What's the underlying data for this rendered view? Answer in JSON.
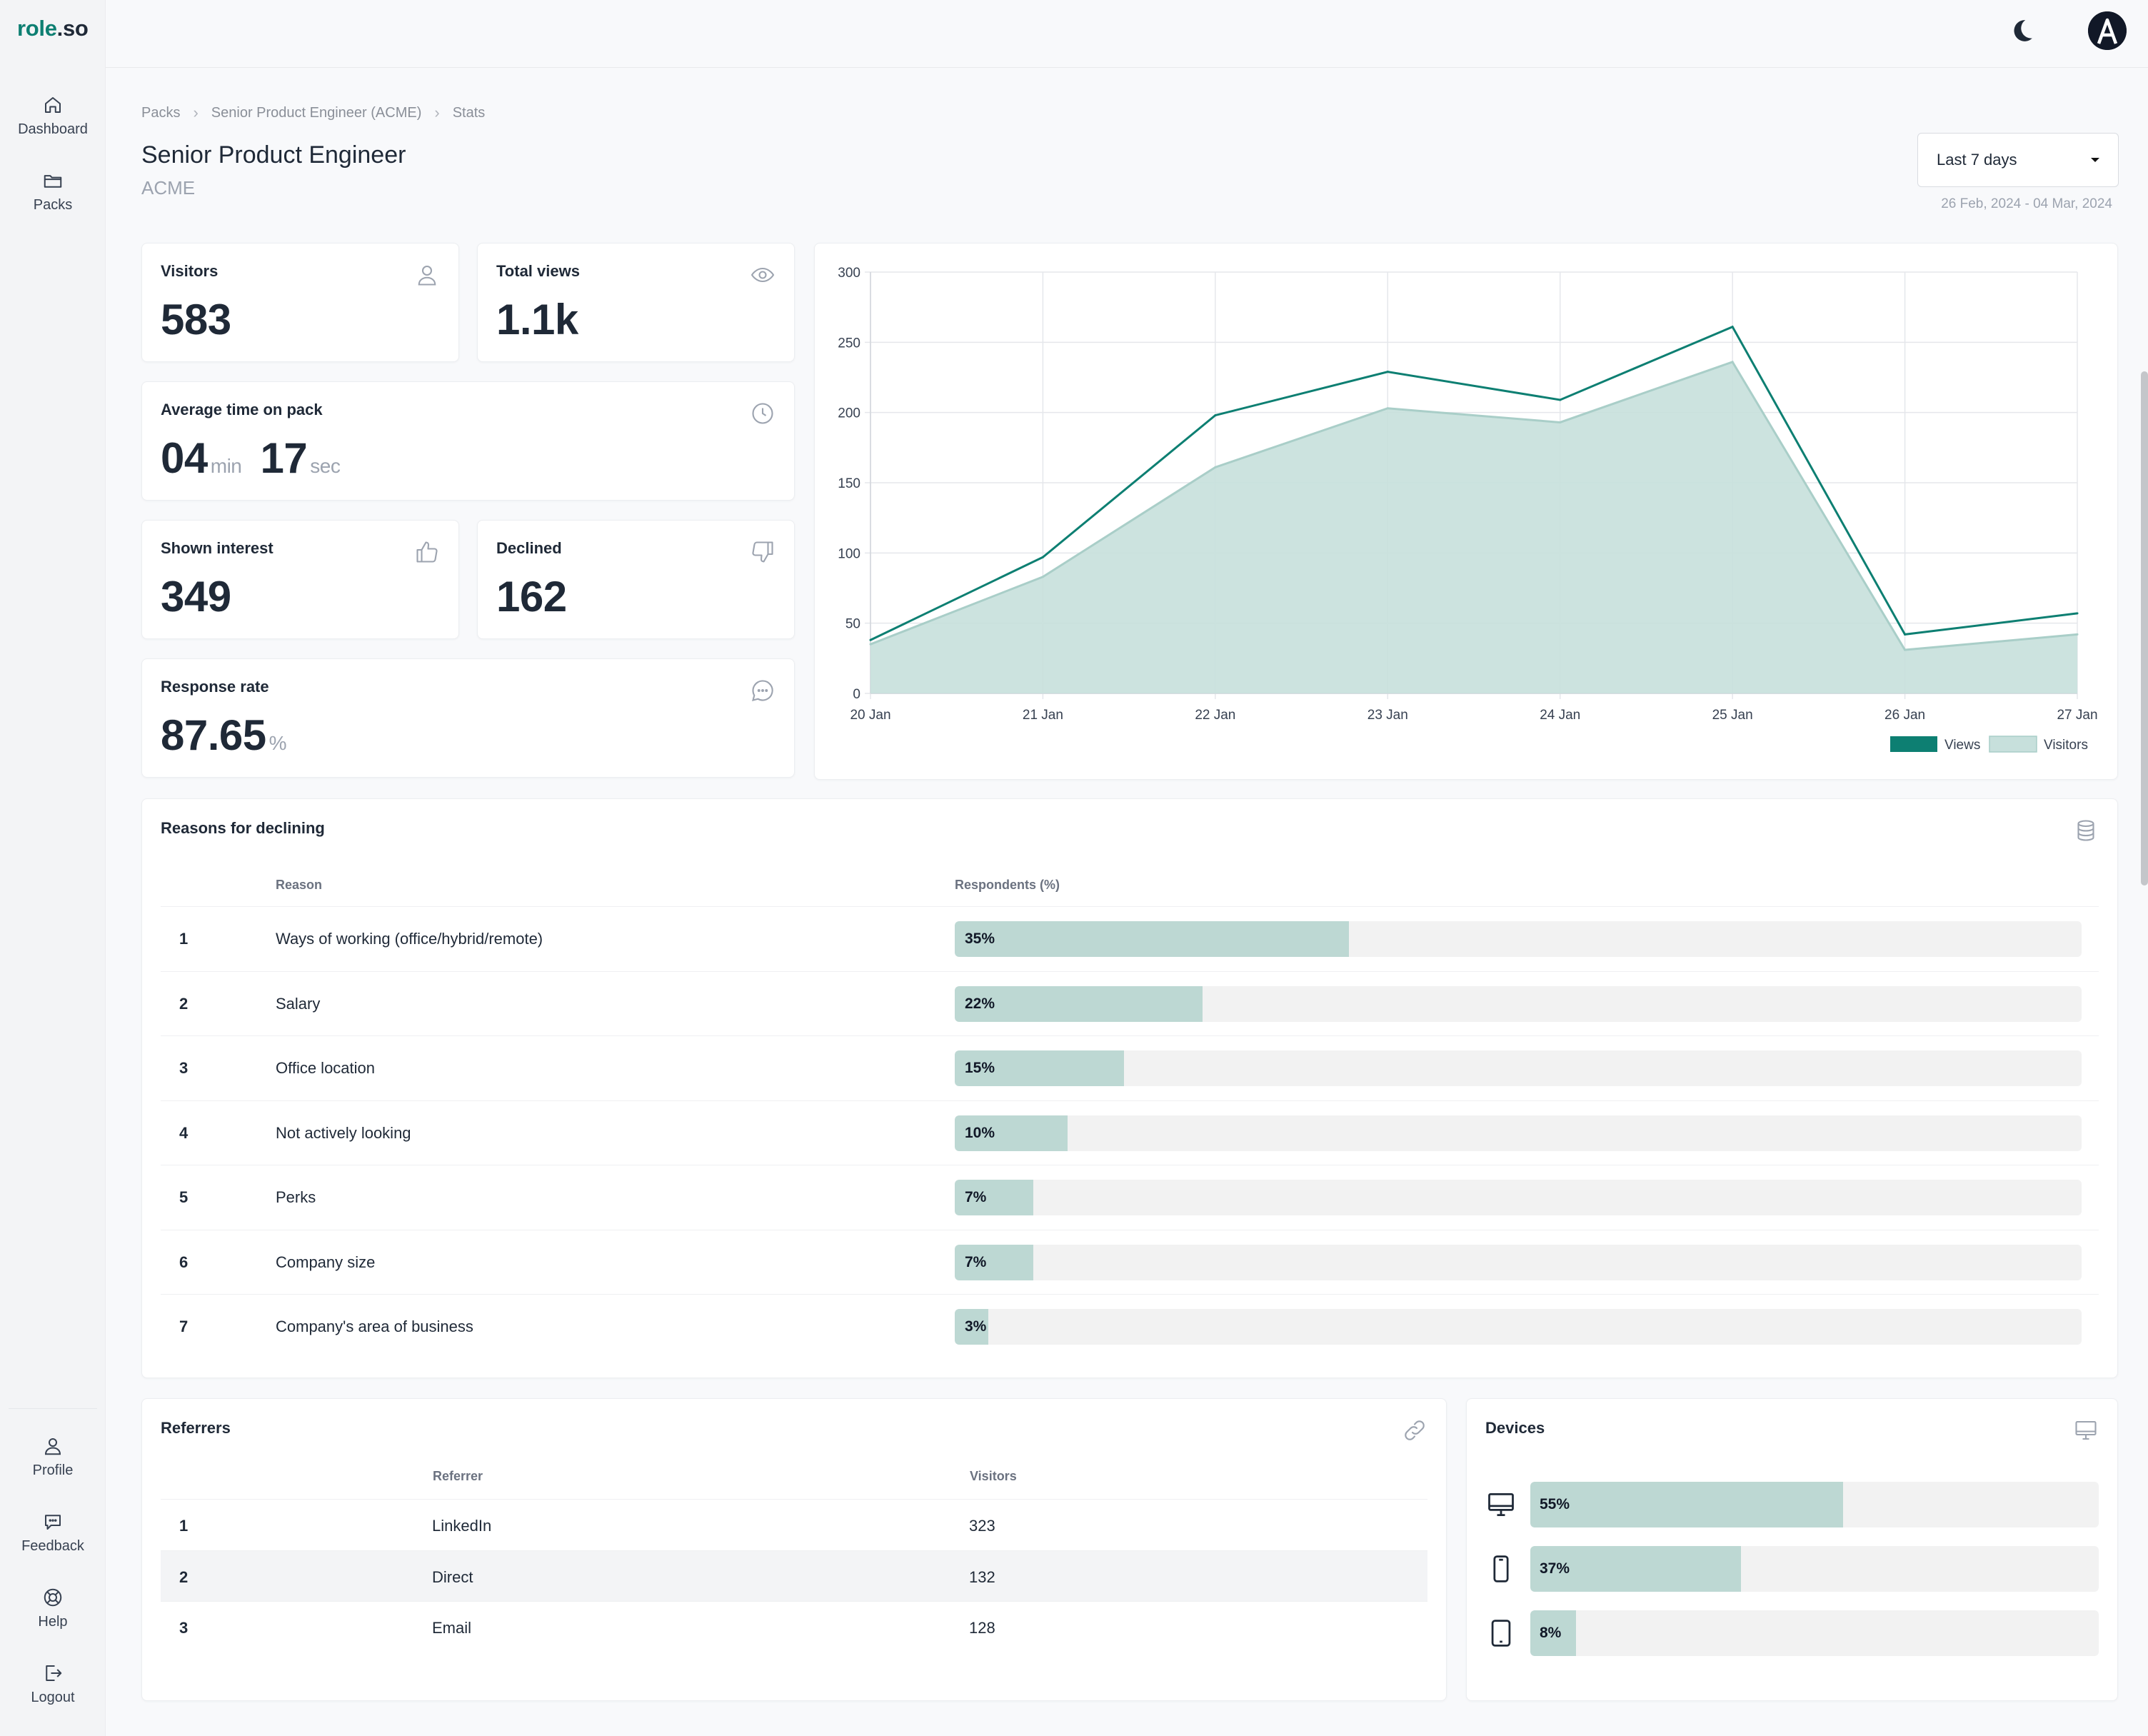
{
  "app": {
    "logo_role": "role",
    "logo_so": ".so",
    "accent": "#0d7f72"
  },
  "sidebar": {
    "top_items": [
      {
        "label": "Dashboard",
        "icon": "home-icon"
      },
      {
        "label": "Packs",
        "icon": "folder-icon"
      }
    ],
    "bottom_items": [
      {
        "label": "Profile",
        "icon": "user-icon"
      },
      {
        "label": "Feedback",
        "icon": "chat-icon"
      },
      {
        "label": "Help",
        "icon": "lifebuoy-icon"
      },
      {
        "label": "Logout",
        "icon": "logout-icon"
      }
    ]
  },
  "topbar": {
    "theme_icon": "moon-icon",
    "avatar_icon": "avatar-icon"
  },
  "breadcrumb": [
    "Packs",
    "Senior Product Engineer (ACME)",
    "Stats"
  ],
  "header": {
    "title": "Senior Product Engineer",
    "subtitle": "ACME",
    "range_label": "Last 7 days",
    "range_dates": "26 Feb, 2024 - 04 Mar, 2024"
  },
  "stats": {
    "visitors": {
      "label": "Visitors",
      "value": "583"
    },
    "total_views": {
      "label": "Total views",
      "value": "1.1k"
    },
    "avg_time": {
      "label": "Average time on pack",
      "min": "04",
      "min_unit": "min",
      "sec": "17",
      "sec_unit": "sec"
    },
    "interest": {
      "label": "Shown interest",
      "value": "349"
    },
    "declined": {
      "label": "Declined",
      "value": "162"
    },
    "response": {
      "label": "Response rate",
      "value": "87.65",
      "unit": "%"
    }
  },
  "chart_data": {
    "type": "area",
    "title": "",
    "xlabel": "",
    "ylabel": "",
    "x": [
      "20 Jan",
      "21 Jan",
      "22 Jan",
      "23 Jan",
      "24 Jan",
      "25 Jan",
      "26 Jan",
      "27 Jan"
    ],
    "ylim": [
      0,
      300
    ],
    "yticks": [
      0,
      50,
      100,
      150,
      200,
      250,
      300
    ],
    "grid": true,
    "legend": "bottom-right",
    "series": [
      {
        "name": "Views",
        "type": "line",
        "color": "#0d7f72",
        "values": [
          38,
          97,
          198,
          229,
          209,
          261,
          42,
          57
        ]
      },
      {
        "name": "Visitors",
        "type": "area",
        "color": "#c7e0dc",
        "values": [
          35,
          83,
          161,
          203,
          193,
          236,
          31,
          42
        ]
      }
    ]
  },
  "reasons": {
    "title": "Reasons for declining",
    "col_reason": "Reason",
    "col_resp": "Respondents (%)",
    "rows": [
      {
        "num": "1",
        "reason": "Ways of working (office/hybrid/remote)",
        "label": "35%",
        "pct": 35
      },
      {
        "num": "2",
        "reason": "Salary",
        "label": "22%",
        "pct": 22
      },
      {
        "num": "3",
        "reason": "Office location",
        "label": "15%",
        "pct": 15
      },
      {
        "num": "4",
        "reason": "Not actively looking",
        "label": "10%",
        "pct": 10
      },
      {
        "num": "5",
        "reason": "Perks",
        "label": "7%",
        "pct": 7
      },
      {
        "num": "6",
        "reason": "Company size",
        "label": "7%",
        "pct": 7
      },
      {
        "num": "7",
        "reason": "Company's area of business",
        "label": "3%",
        "pct": 3
      }
    ]
  },
  "referrers": {
    "title": "Referrers",
    "col_ref": "Referrer",
    "col_vis": "Visitors",
    "rows": [
      {
        "num": "1",
        "ref": "LinkedIn",
        "vis": "323"
      },
      {
        "num": "2",
        "ref": "Direct",
        "vis": "132"
      },
      {
        "num": "3",
        "ref": "Email",
        "vis": "128"
      }
    ]
  },
  "devices": {
    "title": "Devices",
    "rows": [
      {
        "icon": "desktop-icon",
        "label": "55%",
        "pct": 55
      },
      {
        "icon": "mobile-icon",
        "label": "37%",
        "pct": 37
      },
      {
        "icon": "tablet-icon",
        "label": "8%",
        "pct": 8
      }
    ]
  }
}
